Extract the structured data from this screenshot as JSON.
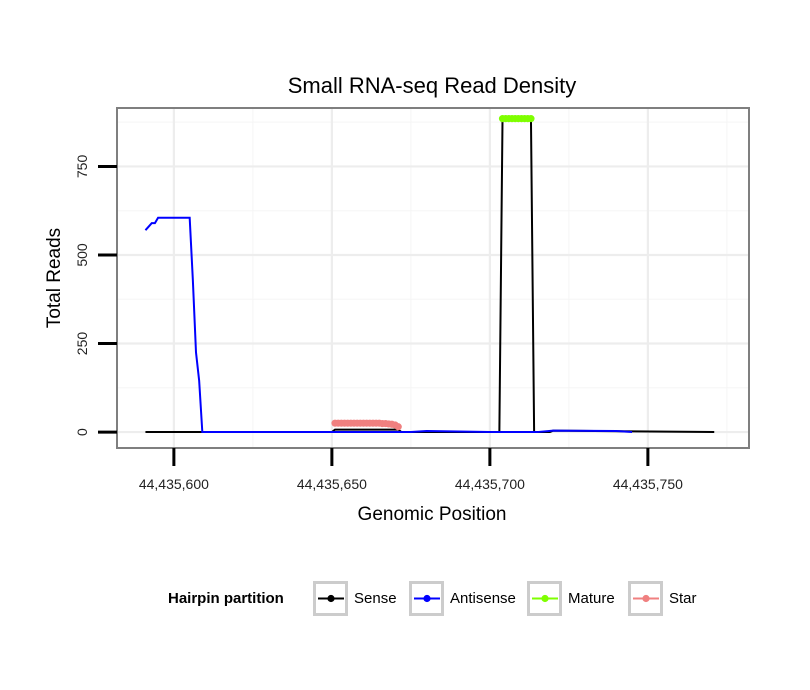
{
  "chart_data": {
    "type": "line",
    "title": "Small RNA-seq Read Density",
    "xlabel": "Genomic Position",
    "ylabel": "Total Reads",
    "xlim": [
      44435582,
      44435782
    ],
    "ylim": [
      -45,
      915
    ],
    "x_ticks": [
      44435600,
      44435650,
      44435700,
      44435750
    ],
    "x_tick_labels": [
      "44,435,600",
      "44,435,650",
      "44,435,700",
      "44,435,750"
    ],
    "y_ticks": [
      0,
      250,
      500,
      750
    ],
    "y_tick_labels": [
      "0",
      "250",
      "500",
      "750"
    ],
    "grid": true,
    "legend": {
      "title": "Hairpin partition",
      "position": "bottom",
      "entries": [
        {
          "name": "Sense",
          "color": "#000000"
        },
        {
          "name": "Antisense",
          "color": "#0000ff"
        },
        {
          "name": "Mature",
          "color": "#7fff00"
        },
        {
          "name": "Star",
          "color": "#f08080"
        }
      ]
    },
    "series": [
      {
        "name": "Sense",
        "color": "#000000",
        "points": [
          [
            44435591,
            0
          ],
          [
            44435650,
            0
          ],
          [
            44435651,
            7
          ],
          [
            44435671,
            7
          ],
          [
            44435672,
            0
          ],
          [
            44435703,
            0
          ],
          [
            44435704,
            885
          ],
          [
            44435713,
            885
          ],
          [
            44435714,
            0
          ],
          [
            44435719,
            0
          ],
          [
            44435720,
            4
          ],
          [
            44435771,
            0
          ]
        ]
      },
      {
        "name": "Antisense",
        "color": "#0000ff",
        "points": [
          [
            44435591,
            570
          ],
          [
            44435592,
            580
          ],
          [
            44435593,
            590
          ],
          [
            44435594,
            590
          ],
          [
            44435595,
            605
          ],
          [
            44435596,
            605
          ],
          [
            44435605,
            605
          ],
          [
            44435606,
            430
          ],
          [
            44435607,
            225
          ],
          [
            44435608,
            145
          ],
          [
            44435609,
            0
          ],
          [
            44435675,
            0
          ],
          [
            44435680,
            3
          ],
          [
            44435700,
            0
          ],
          [
            44435715,
            0
          ],
          [
            44435720,
            4
          ],
          [
            44435740,
            3
          ],
          [
            44435745,
            0
          ]
        ]
      },
      {
        "name": "Mature",
        "color": "#7fff00",
        "points": [
          [
            44435704,
            885
          ],
          [
            44435705,
            885
          ],
          [
            44435706,
            885
          ],
          [
            44435707,
            885
          ],
          [
            44435708,
            885
          ],
          [
            44435709,
            885
          ],
          [
            44435710,
            885
          ],
          [
            44435711,
            885
          ],
          [
            44435712,
            885
          ],
          [
            44435713,
            885
          ]
        ]
      },
      {
        "name": "Star",
        "color": "#f08080",
        "points": [
          [
            44435651,
            25
          ],
          [
            44435652,
            25
          ],
          [
            44435653,
            25
          ],
          [
            44435654,
            25
          ],
          [
            44435655,
            25
          ],
          [
            44435656,
            25
          ],
          [
            44435657,
            25
          ],
          [
            44435658,
            25
          ],
          [
            44435659,
            25
          ],
          [
            44435660,
            25
          ],
          [
            44435661,
            25
          ],
          [
            44435662,
            25
          ],
          [
            44435663,
            25
          ],
          [
            44435664,
            25
          ],
          [
            44435665,
            25
          ],
          [
            44435666,
            24
          ],
          [
            44435667,
            24
          ],
          [
            44435668,
            23
          ],
          [
            44435669,
            22
          ],
          [
            44435670,
            20
          ],
          [
            44435671,
            15
          ]
        ]
      }
    ]
  }
}
